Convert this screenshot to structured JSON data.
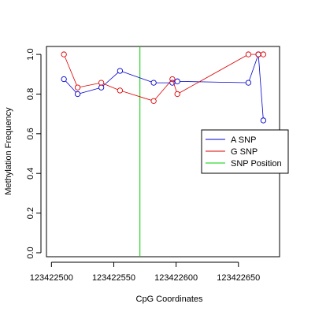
{
  "chart_data": {
    "type": "line",
    "xlabel": "CpG Coordinates",
    "ylabel": "Methylation Frequency",
    "xlim": [
      123422496,
      123422683
    ],
    "ylim": [
      -0.02,
      1.04
    ],
    "xticks": [
      123422500,
      123422550,
      123422600,
      123422650
    ],
    "yticks": [
      0.0,
      0.2,
      0.4,
      0.6,
      0.8,
      1.0
    ],
    "ytick_labels": [
      "0.0",
      "0.2",
      "0.4",
      "0.6",
      "0.8",
      "1.0"
    ],
    "legend_position": "right",
    "series": [
      {
        "name": "A SNP",
        "color": "#0000cc",
        "x": [
          123422510,
          123422521,
          123422540,
          123422555,
          123422582,
          123422597,
          123422601,
          123422658,
          123422666,
          123422670
        ],
        "y": [
          0.875,
          0.8,
          0.833,
          0.917,
          0.857,
          0.857,
          0.864,
          0.857,
          1.0,
          0.667
        ]
      },
      {
        "name": "G SNP",
        "color": "#dd0000",
        "x": [
          123422510,
          123422521,
          123422540,
          123422555,
          123422582,
          123422597,
          123422601,
          123422658,
          123422666,
          123422670
        ],
        "y": [
          1.0,
          0.833,
          0.857,
          0.818,
          0.765,
          0.875,
          0.8,
          1.0,
          1.0,
          1.0
        ]
      }
    ],
    "snp_position": {
      "name": "SNP Position",
      "x": 123422571,
      "color": "#00cc00"
    }
  }
}
